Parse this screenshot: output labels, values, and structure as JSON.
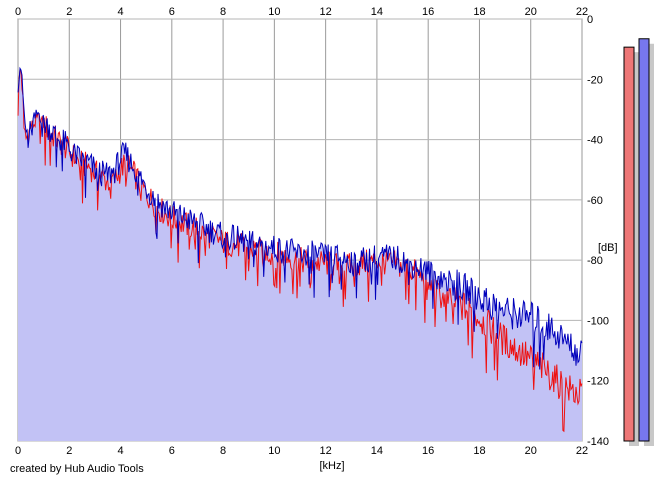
{
  "chart_data": {
    "type": "area",
    "xlabel": "[kHz]",
    "ylabel": "[dB]",
    "xlim": [
      0,
      22
    ],
    "ylim": [
      -140,
      0
    ],
    "x_ticks": [
      "0",
      "2",
      "4",
      "6",
      "8",
      "10",
      "12",
      "14",
      "16",
      "18",
      "20",
      "22"
    ],
    "y_ticks": [
      "0",
      "-20",
      "-40",
      "-60",
      "-80",
      "-100",
      "-120",
      "-140"
    ],
    "grid": true,
    "series": [
      {
        "color": "#ee1111",
        "x": [
          0.0,
          0.1,
          0.3,
          0.5,
          0.8,
          1.0,
          1.3,
          1.5,
          1.8,
          2.0,
          2.2,
          2.5,
          2.8,
          3.0,
          3.2,
          3.5,
          3.8,
          4.0,
          4.2,
          4.5,
          4.8,
          5.0,
          5.5,
          6.0,
          6.5,
          7.0,
          7.5,
          8.0,
          8.5,
          9.0,
          9.5,
          10.0,
          10.5,
          11.0,
          11.5,
          12.0,
          12.5,
          13.0,
          13.5,
          14.0,
          14.5,
          15.0,
          15.5,
          16.0,
          16.5,
          17.0,
          17.5,
          18.0,
          18.5,
          19.0,
          19.5,
          20.0,
          20.5,
          21.0,
          21.5,
          22.0
        ],
        "values": [
          -25,
          -15,
          -40,
          -36,
          -33,
          -35,
          -38,
          -40,
          -42,
          -44,
          -46,
          -48,
          -49,
          -51,
          -52,
          -54,
          -53,
          -50,
          -48,
          -51,
          -55,
          -58,
          -63,
          -66,
          -68,
          -70,
          -72,
          -74,
          -75,
          -76,
          -77,
          -78,
          -79,
          -80,
          -81,
          -81,
          -82,
          -82,
          -81,
          -80,
          -81,
          -82,
          -84,
          -88,
          -92,
          -94,
          -96,
          -99,
          -103,
          -107,
          -110,
          -113,
          -116,
          -120,
          -123,
          -125
        ]
      },
      {
        "color": "#0000bb",
        "x": [
          0.0,
          0.1,
          0.3,
          0.5,
          0.8,
          1.0,
          1.3,
          1.5,
          1.8,
          2.0,
          2.2,
          2.5,
          2.8,
          3.0,
          3.2,
          3.5,
          3.8,
          4.0,
          4.2,
          4.5,
          4.8,
          5.0,
          5.5,
          6.0,
          6.5,
          7.0,
          7.5,
          8.0,
          8.5,
          9.0,
          9.5,
          10.0,
          10.5,
          11.0,
          11.5,
          12.0,
          12.5,
          13.0,
          13.5,
          14.0,
          14.5,
          15.0,
          15.5,
          16.0,
          16.5,
          17.0,
          17.5,
          18.0,
          18.5,
          19.0,
          19.5,
          20.0,
          20.5,
          21.0,
          21.5,
          22.0
        ],
        "values": [
          -22,
          -14,
          -38,
          -35,
          -31,
          -34,
          -37,
          -39,
          -41,
          -43,
          -45,
          -47,
          -48,
          -50,
          -51,
          -52,
          -50,
          -46,
          -45,
          -49,
          -53,
          -56,
          -61,
          -64,
          -66,
          -68,
          -70,
          -72,
          -73,
          -74,
          -75,
          -76,
          -77,
          -78,
          -78,
          -79,
          -79,
          -80,
          -80,
          -79,
          -79,
          -80,
          -82,
          -84,
          -86,
          -88,
          -90,
          -92,
          -95,
          -97,
          -98,
          -99,
          -101,
          -104,
          -108,
          -112
        ]
      }
    ],
    "level_meters": [
      {
        "color": "#ee7777",
        "level": 0.94
      },
      {
        "color": "#7777ee",
        "level": 0.96
      }
    ]
  },
  "credit": "created by Hub Audio Tools"
}
